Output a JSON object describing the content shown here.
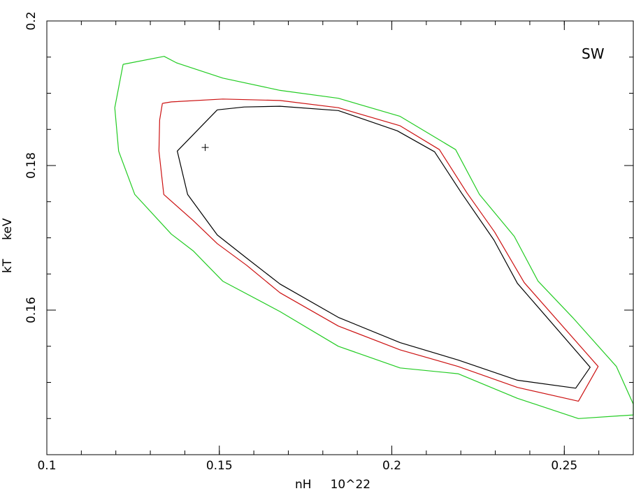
{
  "chart_data": {
    "type": "line",
    "title": "",
    "annotation": "SW",
    "xlabel": "nH     10^22",
    "ylabel": "kT     keV",
    "xlim": [
      0.1,
      0.27
    ],
    "ylim": [
      0.14,
      0.2
    ],
    "x_ticks": [
      0.1,
      0.15,
      0.2,
      0.25
    ],
    "x_tick_labels": [
      "0.1",
      "0.15",
      "0.2",
      "0.25"
    ],
    "y_ticks": [
      0.16,
      0.18,
      0.2
    ],
    "y_tick_labels": [
      "0.16",
      "0.18",
      "0.2"
    ],
    "grid": false,
    "best_fit": {
      "x": 0.1459,
      "y": 0.1825
    },
    "series": [
      {
        "color": "#000000",
        "points": [
          [
            0.1494,
            0.1877
          ],
          [
            0.1572,
            0.1881
          ],
          [
            0.1676,
            0.1882
          ],
          [
            0.1845,
            0.1876
          ],
          [
            0.2016,
            0.1848
          ],
          [
            0.2124,
            0.1819
          ],
          [
            0.2202,
            0.1762
          ],
          [
            0.2296,
            0.1697
          ],
          [
            0.2364,
            0.1637
          ],
          [
            0.2575,
            0.1521
          ],
          [
            0.2533,
            0.1492
          ],
          [
            0.2364,
            0.1503
          ],
          [
            0.2192,
            0.1531
          ],
          [
            0.2024,
            0.1555
          ],
          [
            0.1845,
            0.159
          ],
          [
            0.1676,
            0.1636
          ],
          [
            0.1579,
            0.1672
          ],
          [
            0.1494,
            0.1704
          ],
          [
            0.1408,
            0.176
          ],
          [
            0.1378,
            0.182
          ],
          [
            0.1494,
            0.1877
          ]
        ]
      },
      {
        "color": "#cc1111",
        "points": [
          [
            0.1335,
            0.1886
          ],
          [
            0.1361,
            0.1888
          ],
          [
            0.151,
            0.1892
          ],
          [
            0.1676,
            0.189
          ],
          [
            0.1845,
            0.188
          ],
          [
            0.2024,
            0.1855
          ],
          [
            0.2138,
            0.1822
          ],
          [
            0.2218,
            0.1762
          ],
          [
            0.2298,
            0.1708
          ],
          [
            0.2384,
            0.1638
          ],
          [
            0.2598,
            0.1522
          ],
          [
            0.2541,
            0.1474
          ],
          [
            0.2364,
            0.1493
          ],
          [
            0.2192,
            0.1522
          ],
          [
            0.2024,
            0.1545
          ],
          [
            0.1845,
            0.1578
          ],
          [
            0.1676,
            0.1624
          ],
          [
            0.1579,
            0.1662
          ],
          [
            0.1494,
            0.1692
          ],
          [
            0.1424,
            0.1724
          ],
          [
            0.1339,
            0.176
          ],
          [
            0.1325,
            0.182
          ],
          [
            0.1327,
            0.1863
          ],
          [
            0.1335,
            0.1886
          ]
        ]
      },
      {
        "color": "#22cc22",
        "points": [
          [
            0.1221,
            0.194
          ],
          [
            0.134,
            0.1951
          ],
          [
            0.1376,
            0.1942
          ],
          [
            0.151,
            0.1921
          ],
          [
            0.1676,
            0.1904
          ],
          [
            0.1845,
            0.1893
          ],
          [
            0.2024,
            0.1868
          ],
          [
            0.2185,
            0.1822
          ],
          [
            0.2254,
            0.176
          ],
          [
            0.2355,
            0.1702
          ],
          [
            0.2424,
            0.164
          ],
          [
            0.2524,
            0.159
          ],
          [
            0.2651,
            0.1522
          ],
          [
            0.27,
            0.147
          ],
          [
            0.27,
            0.1455
          ],
          [
            0.2541,
            0.145
          ],
          [
            0.2364,
            0.1478
          ],
          [
            0.2192,
            0.1512
          ],
          [
            0.2024,
            0.152
          ],
          [
            0.1845,
            0.155
          ],
          [
            0.1676,
            0.1598
          ],
          [
            0.151,
            0.164
          ],
          [
            0.1424,
            0.1682
          ],
          [
            0.1361,
            0.1705
          ],
          [
            0.1255,
            0.176
          ],
          [
            0.1208,
            0.182
          ],
          [
            0.1197,
            0.188
          ],
          [
            0.1221,
            0.194
          ]
        ]
      }
    ]
  }
}
